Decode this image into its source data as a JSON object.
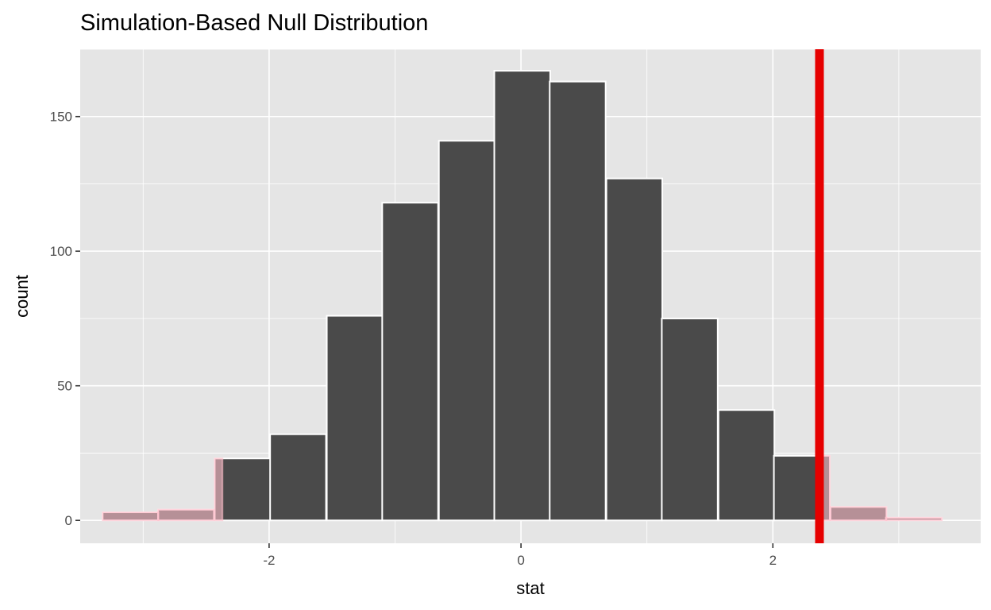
{
  "chart_data": {
    "type": "bar",
    "title": "Simulation-Based Null Distribution",
    "xlabel": "stat",
    "ylabel": "count",
    "xlim": [
      -3.5,
      3.65
    ],
    "ylim": [
      -8.5,
      175
    ],
    "x_ticks": [
      -2,
      0,
      2
    ],
    "x_tick_labels": [
      "-2",
      "0",
      "2"
    ],
    "y_ticks": [
      0,
      50,
      100,
      150
    ],
    "y_tick_labels": [
      "0",
      "50",
      "100",
      "150"
    ],
    "grid": true,
    "legend": "none",
    "bin_width": 0.444,
    "bins": [
      {
        "center": -3.1,
        "count": 3
      },
      {
        "center": -2.66,
        "count": 4
      },
      {
        "center": -2.21,
        "count": 23
      },
      {
        "center": -1.77,
        "count": 32
      },
      {
        "center": -1.32,
        "count": 76
      },
      {
        "center": -0.88,
        "count": 118
      },
      {
        "center": -0.43,
        "count": 141
      },
      {
        "center": 0.01,
        "count": 167
      },
      {
        "center": 0.45,
        "count": 163
      },
      {
        "center": 0.9,
        "count": 127
      },
      {
        "center": 1.34,
        "count": 75
      },
      {
        "center": 1.79,
        "count": 41
      },
      {
        "center": 2.23,
        "count": 24
      },
      {
        "center": 2.68,
        "count": 5
      },
      {
        "center": 3.12,
        "count": 1
      }
    ],
    "observed_stat": 2.37,
    "shaded_regions": [
      [
        -9,
        -2.37
      ],
      [
        2.37,
        9
      ]
    ],
    "colors": {
      "panel": "#e5e5e5",
      "grid": "#ffffff",
      "bar_fill": "#4a4a4a",
      "bar_outline": "#ffffff",
      "shade": "#ffc0cb",
      "shade_opacity": 0.6,
      "obs_line": "#e60000"
    }
  }
}
